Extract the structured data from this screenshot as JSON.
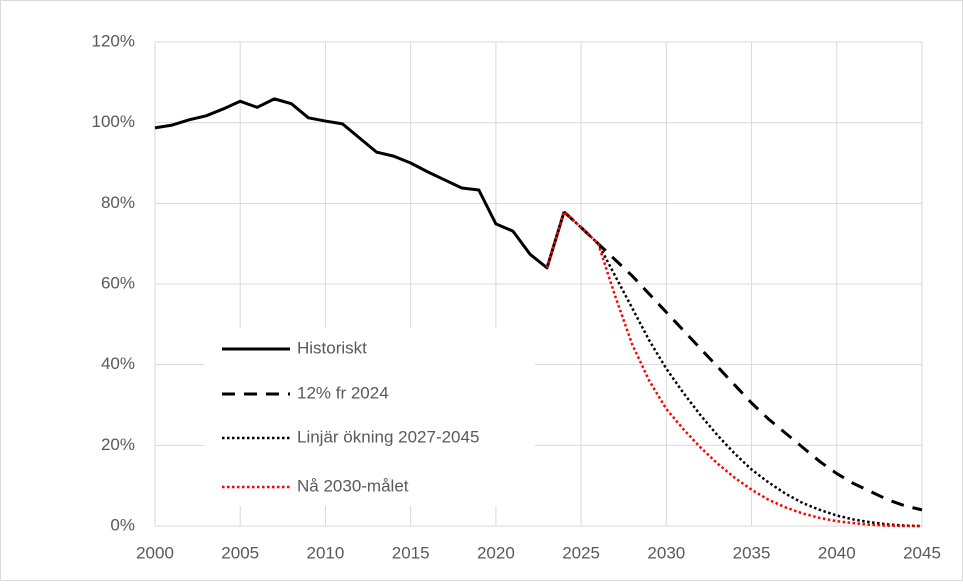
{
  "chart_data": {
    "type": "line",
    "x": [
      2000,
      2001,
      2002,
      2003,
      2004,
      2005,
      2006,
      2007,
      2008,
      2009,
      2010,
      2011,
      2012,
      2013,
      2014,
      2015,
      2016,
      2017,
      2018,
      2019,
      2020,
      2021,
      2022,
      2023,
      2024,
      2025,
      2026,
      2027,
      2028,
      2029,
      2030,
      2031,
      2032,
      2033,
      2034,
      2035,
      2036,
      2037,
      2038,
      2039,
      2040,
      2041,
      2042,
      2043,
      2044,
      2045
    ],
    "series": [
      {
        "name": "Historiskt",
        "color": "#000000",
        "dash": "solid",
        "values": [
          98.7,
          99.4,
          100.7,
          101.7,
          103.4,
          105.3,
          103.8,
          105.9,
          104.7,
          101.2,
          100.4,
          99.7,
          96.2,
          92.7,
          91.7,
          90,
          87.8,
          85.8,
          83.8,
          83.3,
          74.9,
          73.1,
          67.4,
          64,
          77.9,
          null,
          null,
          null,
          null,
          null,
          null,
          null,
          null,
          null,
          null,
          null,
          null,
          null,
          null,
          null,
          null,
          null,
          null,
          null,
          null,
          null
        ]
      },
      {
        "name": "12% fr 2024",
        "color": "#000000",
        "dash": "dashed",
        "values": [
          null,
          null,
          null,
          null,
          null,
          null,
          null,
          null,
          null,
          null,
          null,
          null,
          null,
          null,
          null,
          null,
          null,
          null,
          null,
          null,
          null,
          null,
          null,
          null,
          77.9,
          74,
          70,
          66,
          62,
          57.5,
          53,
          48.5,
          44,
          39.5,
          35,
          30.5,
          26.5,
          23,
          19.5,
          16,
          13,
          10.5,
          8.5,
          6.5,
          5,
          4
        ]
      },
      {
        "name": "Linjär ökning 2027-2045",
        "color": "#000000",
        "dash": "dotted",
        "values": [
          null,
          null,
          null,
          null,
          null,
          null,
          null,
          null,
          null,
          null,
          null,
          null,
          null,
          null,
          null,
          null,
          null,
          null,
          null,
          null,
          null,
          null,
          null,
          null,
          77.9,
          74,
          70,
          62,
          54,
          46,
          39,
          33,
          27.5,
          22.5,
          18,
          14,
          10.8,
          8,
          5.7,
          4,
          2.6,
          1.6,
          0.9,
          0.4,
          0.1,
          0
        ]
      },
      {
        "name": "Nå 2030-målet",
        "color": "#ff0000",
        "dash": "dotted",
        "values": [
          null,
          null,
          null,
          null,
          null,
          null,
          null,
          null,
          null,
          null,
          null,
          null,
          null,
          null,
          null,
          null,
          null,
          null,
          null,
          null,
          null,
          null,
          null,
          64,
          77.9,
          74,
          70,
          57,
          45,
          36,
          29,
          24,
          19.5,
          15.5,
          12,
          9,
          6.5,
          4.6,
          3.1,
          2,
          1.2,
          0.7,
          0.3,
          0.1,
          0,
          0
        ]
      }
    ],
    "xlim": [
      2000,
      2045
    ],
    "xticks": [
      2000,
      2005,
      2010,
      2015,
      2020,
      2025,
      2030,
      2035,
      2040,
      2045
    ],
    "ylim": [
      0,
      120
    ],
    "yticks": [
      {
        "value": 0,
        "label": "0%"
      },
      {
        "value": 20,
        "label": "20%"
      },
      {
        "value": 40,
        "label": "40%"
      },
      {
        "value": 60,
        "label": "60%"
      },
      {
        "value": 80,
        "label": "80%"
      },
      {
        "value": 100,
        "label": "100%"
      },
      {
        "value": 120,
        "label": "120%"
      }
    ],
    "grid": true,
    "legend": "lower left"
  }
}
